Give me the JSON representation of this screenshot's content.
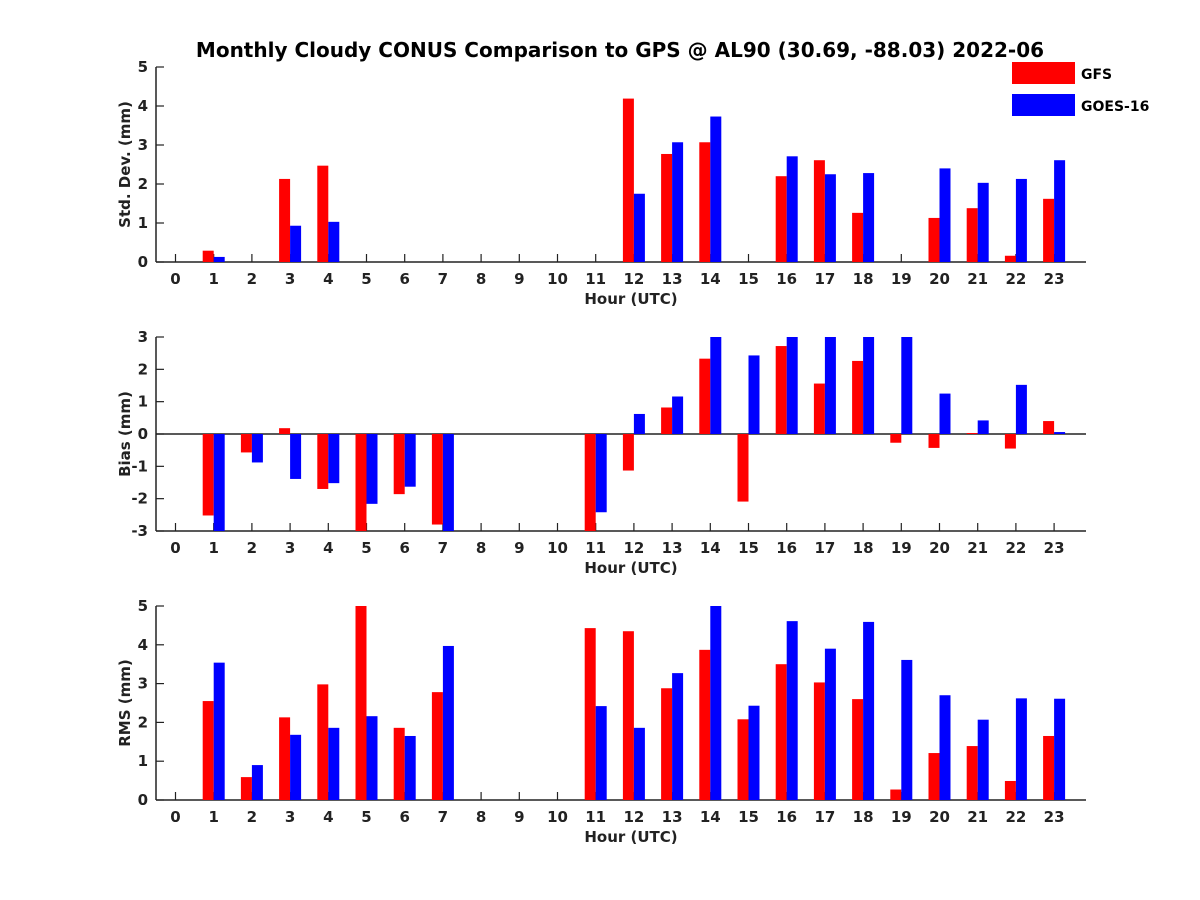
{
  "figure": {
    "title": "Monthly Cloudy CONUS Comparison to GPS @ AL90 (30.69, -88.03) 2022-06"
  },
  "legend": {
    "placement": "top-right",
    "items": [
      {
        "label": "GFS",
        "color": "#ff0000"
      },
      {
        "label": "GOES-16",
        "color": "#0000ff"
      }
    ]
  },
  "chart_data": [
    {
      "type": "bar",
      "xlabel": "Hour (UTC)",
      "ylabel": "Std. Dev. (mm)",
      "ylim": [
        0,
        5
      ],
      "yticks": [
        0,
        1,
        2,
        3,
        4,
        5
      ],
      "categories": [
        "0",
        "1",
        "2",
        "3",
        "4",
        "5",
        "6",
        "7",
        "8",
        "9",
        "10",
        "11",
        "12",
        "13",
        "14",
        "15",
        "16",
        "17",
        "18",
        "19",
        "20",
        "21",
        "22",
        "23"
      ],
      "series": [
        {
          "name": "GFS",
          "color": "#ff0000",
          "values": [
            null,
            0.29,
            null,
            2.13,
            2.47,
            null,
            null,
            null,
            null,
            null,
            null,
            null,
            4.19,
            2.77,
            3.07,
            null,
            2.2,
            2.61,
            1.26,
            null,
            1.13,
            1.38,
            0.16,
            1.62
          ]
        },
        {
          "name": "GOES-16",
          "color": "#0000ff",
          "values": [
            null,
            0.13,
            null,
            0.93,
            1.03,
            null,
            null,
            null,
            null,
            null,
            null,
            null,
            1.75,
            3.07,
            3.73,
            null,
            2.71,
            2.25,
            2.28,
            null,
            2.4,
            2.03,
            2.13,
            2.61
          ]
        }
      ]
    },
    {
      "type": "bar",
      "xlabel": "Hour (UTC)",
      "ylabel": "Bias (mm)",
      "ylim": [
        -3,
        3
      ],
      "yticks": [
        -3,
        -2,
        -1,
        0,
        1,
        2,
        3
      ],
      "categories": [
        "0",
        "1",
        "2",
        "3",
        "4",
        "5",
        "6",
        "7",
        "8",
        "9",
        "10",
        "11",
        "12",
        "13",
        "14",
        "15",
        "16",
        "17",
        "18",
        "19",
        "20",
        "21",
        "22",
        "23"
      ],
      "series": [
        {
          "name": "GFS",
          "color": "#ff0000",
          "values": [
            null,
            -2.52,
            -0.57,
            0.18,
            -1.7,
            -3.0,
            -1.86,
            -2.8,
            null,
            null,
            null,
            -3.0,
            -1.13,
            0.82,
            2.33,
            -2.09,
            2.72,
            1.56,
            2.26,
            -0.27,
            -0.43,
            0.03,
            -0.45,
            0.4
          ]
        },
        {
          "name": "GOES-16",
          "color": "#0000ff",
          "values": [
            null,
            -3.0,
            -0.88,
            -1.39,
            -1.52,
            -2.16,
            -1.63,
            -3.0,
            null,
            null,
            null,
            -2.42,
            0.62,
            1.16,
            3.0,
            2.43,
            3.0,
            3.0,
            3.0,
            3.0,
            1.25,
            0.42,
            1.52,
            0.06
          ]
        }
      ]
    },
    {
      "type": "bar",
      "xlabel": "Hour (UTC)",
      "ylabel": "RMS (mm)",
      "ylim": [
        0,
        5
      ],
      "yticks": [
        0,
        1,
        2,
        3,
        4,
        5
      ],
      "categories": [
        "0",
        "1",
        "2",
        "3",
        "4",
        "5",
        "6",
        "7",
        "8",
        "9",
        "10",
        "11",
        "12",
        "13",
        "14",
        "15",
        "16",
        "17",
        "18",
        "19",
        "20",
        "21",
        "22",
        "23"
      ],
      "series": [
        {
          "name": "GFS",
          "color": "#ff0000",
          "values": [
            null,
            2.55,
            0.59,
            2.13,
            2.98,
            5.0,
            1.86,
            2.78,
            null,
            null,
            null,
            4.43,
            4.35,
            2.88,
            3.87,
            2.08,
            3.5,
            3.03,
            2.6,
            0.27,
            1.21,
            1.39,
            0.49,
            1.65
          ]
        },
        {
          "name": "GOES-16",
          "color": "#0000ff",
          "values": [
            null,
            3.54,
            0.9,
            1.68,
            1.86,
            2.16,
            1.65,
            3.97,
            null,
            null,
            null,
            2.42,
            1.86,
            3.27,
            5.0,
            2.43,
            4.61,
            3.9,
            4.59,
            3.61,
            2.7,
            2.07,
            2.62,
            2.61
          ]
        }
      ]
    }
  ]
}
